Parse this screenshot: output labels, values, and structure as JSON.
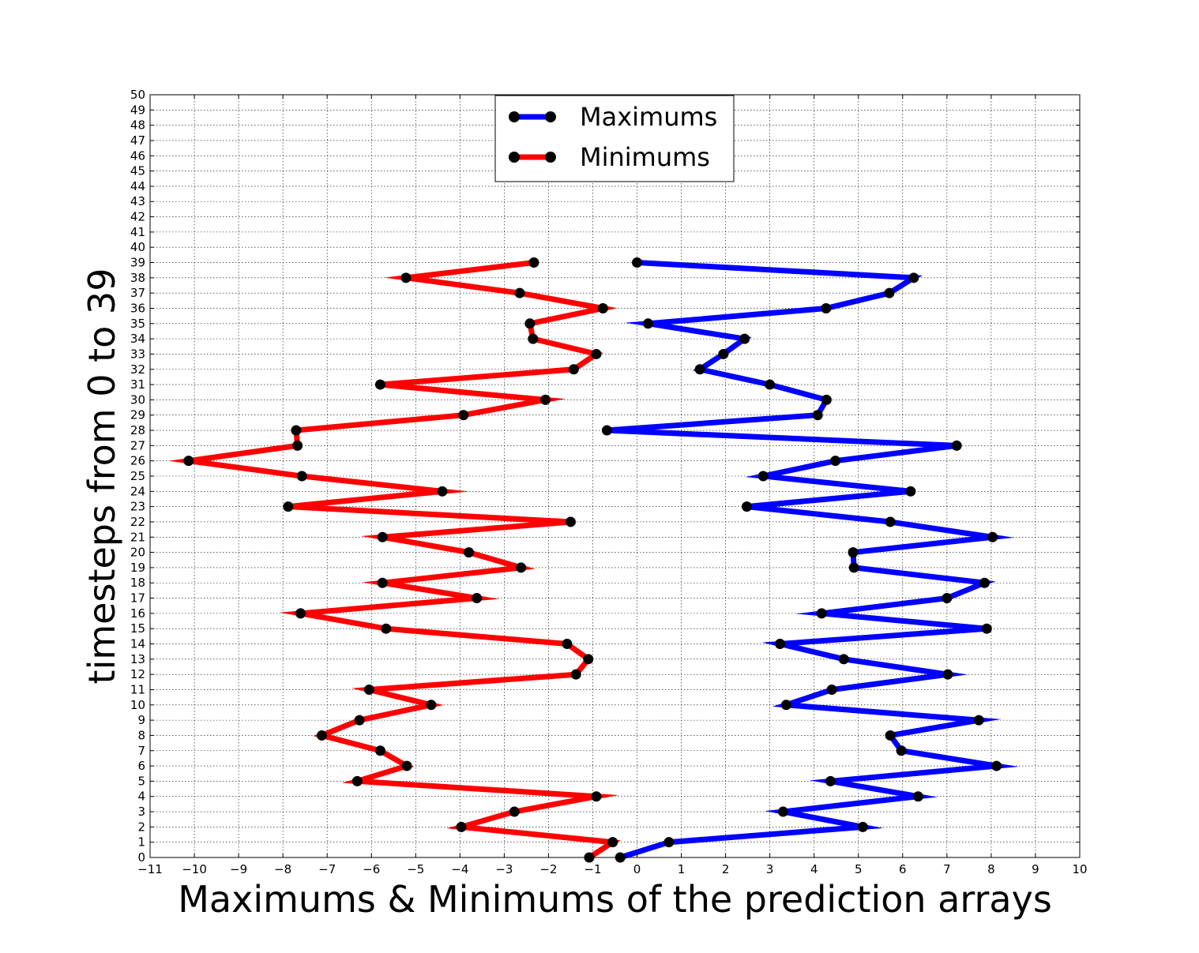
{
  "chart_data": {
    "type": "line",
    "title": "",
    "xlabel": "Maximums & Minimums of the prediction arrays",
    "ylabel": "timesteps from 0 to 39",
    "xlim": [
      -11,
      10
    ],
    "ylim": [
      0,
      50
    ],
    "xticks": [
      -11,
      -10,
      -9,
      -8,
      -7,
      -6,
      -5,
      -4,
      -3,
      -2,
      -1,
      0,
      1,
      2,
      3,
      4,
      5,
      6,
      7,
      8,
      9,
      10
    ],
    "yticks": [
      0,
      1,
      2,
      3,
      4,
      5,
      6,
      7,
      8,
      9,
      10,
      11,
      12,
      13,
      14,
      15,
      16,
      17,
      18,
      19,
      20,
      21,
      22,
      23,
      24,
      25,
      26,
      27,
      28,
      29,
      30,
      31,
      32,
      33,
      34,
      35,
      36,
      37,
      38,
      39,
      40,
      41,
      42,
      43,
      44,
      45,
      46,
      47,
      48,
      49,
      50
    ],
    "grid": true,
    "legend_position": "upper-center",
    "marker_color": "#000000",
    "series": [
      {
        "name": "Maximums",
        "color": "#0000ff",
        "x": [
          -0.38,
          0.72,
          5.1,
          3.3,
          6.35,
          4.37,
          8.12,
          5.97,
          5.72,
          7.72,
          3.37,
          4.4,
          7.02,
          4.67,
          3.23,
          7.9,
          4.17,
          7.0,
          7.85,
          4.9,
          4.88,
          8.03,
          5.72,
          2.48,
          6.18,
          2.85,
          4.48,
          7.22,
          -0.68,
          4.08,
          4.28,
          3.0,
          1.42,
          1.95,
          2.43,
          0.25,
          4.27,
          5.7,
          6.25,
          0.0
        ],
        "y": [
          0,
          1,
          2,
          3,
          4,
          5,
          6,
          7,
          8,
          9,
          10,
          11,
          12,
          13,
          14,
          15,
          16,
          17,
          18,
          19,
          20,
          21,
          22,
          23,
          24,
          25,
          26,
          27,
          28,
          29,
          30,
          31,
          32,
          33,
          34,
          35,
          36,
          37,
          38,
          39
        ]
      },
      {
        "name": "Minimums",
        "color": "#ff0000",
        "x": [
          -1.08,
          -0.55,
          -3.97,
          -2.77,
          -0.92,
          -6.32,
          -5.2,
          -5.8,
          -7.12,
          -6.27,
          -4.65,
          -6.05,
          -1.38,
          -1.1,
          -1.58,
          -5.67,
          -7.6,
          -3.62,
          -5.75,
          -2.62,
          -3.8,
          -5.75,
          -1.5,
          -7.88,
          -4.4,
          -7.57,
          -10.13,
          -7.67,
          -7.7,
          -3.92,
          -2.07,
          -5.8,
          -1.43,
          -0.92,
          -2.35,
          -2.42,
          -0.77,
          -2.65,
          -5.22,
          -2.33
        ],
        "y": [
          0,
          1,
          2,
          3,
          4,
          5,
          6,
          7,
          8,
          9,
          10,
          11,
          12,
          13,
          14,
          15,
          16,
          17,
          18,
          19,
          20,
          21,
          22,
          23,
          24,
          25,
          26,
          27,
          28,
          29,
          30,
          31,
          32,
          33,
          34,
          35,
          36,
          37,
          38,
          39
        ]
      }
    ]
  }
}
